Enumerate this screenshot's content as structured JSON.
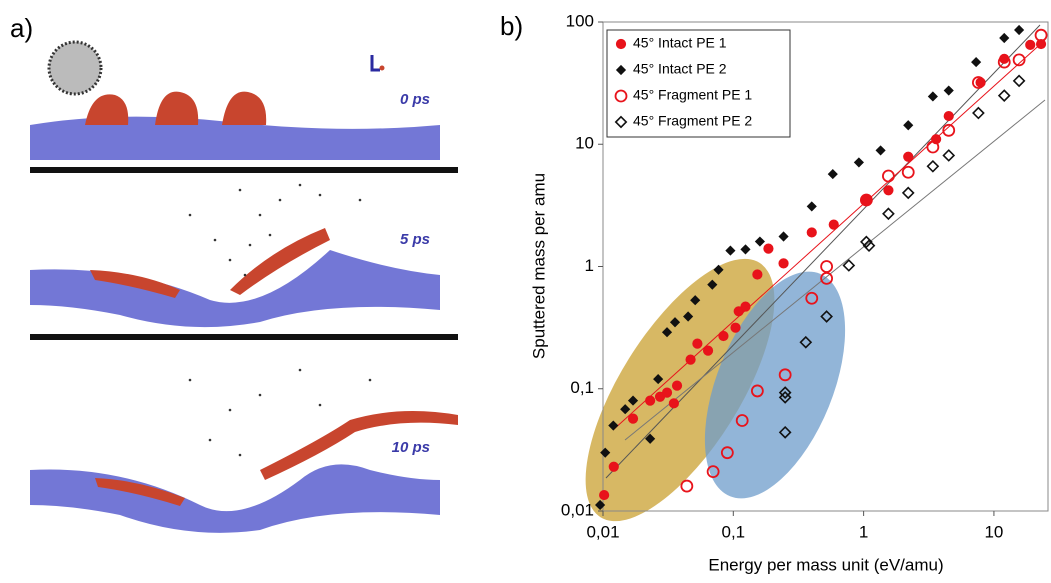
{
  "panel_a": {
    "label": "a)",
    "frames": [
      "0 ps",
      "5 ps",
      "10 ps"
    ]
  },
  "chart_data": {
    "type": "scatter",
    "panel_label": "b)",
    "x_label": "Energy per mass unit (eV/amu)",
    "y_label": "Sputtered mass per amu",
    "x_log": true,
    "y_log": true,
    "grid": false,
    "legend": "top-left",
    "xlim": [
      0.01,
      26
    ],
    "ylim": [
      0.01,
      100
    ],
    "xticks": [
      {
        "value": 0.01,
        "label": "0,01"
      },
      {
        "value": 0.1,
        "label": "0,1"
      },
      1,
      10
    ],
    "yticks": [
      {
        "value": 0.01,
        "label": "0,01"
      },
      {
        "value": 0.1,
        "label": "0,1"
      },
      1,
      10,
      100
    ],
    "series": [
      {
        "name": "45° Intact PE 1",
        "color": "#e8131b",
        "marker": "circle",
        "filled": true,
        "x": [
          0.0102,
          0.0121,
          0.017,
          0.023,
          0.0274,
          0.031,
          0.035,
          0.037,
          0.047,
          0.053,
          0.064,
          0.084,
          0.104,
          0.11,
          0.124,
          0.153,
          0.186,
          0.243,
          0.4,
          0.59,
          1.05,
          1.55,
          2.2,
          3.6,
          4.5,
          7.9,
          12,
          19,
          23
        ],
        "values": [
          0.0135,
          0.023,
          0.057,
          0.08,
          0.086,
          0.093,
          0.076,
          0.106,
          0.173,
          0.234,
          0.205,
          0.27,
          0.316,
          0.43,
          0.47,
          0.86,
          1.4,
          1.06,
          1.9,
          2.2,
          3.5,
          4.2,
          7.9,
          11,
          17,
          32,
          50,
          65,
          66
        ]
      },
      {
        "name": "45° Intact PE 2",
        "color": "#111111",
        "marker": "diamond",
        "filled": true,
        "x": [
          0.0095,
          0.0104,
          0.012,
          0.0148,
          0.017,
          0.023,
          0.0265,
          0.031,
          0.0357,
          0.045,
          0.051,
          0.069,
          0.077,
          0.095,
          0.124,
          0.16,
          0.243,
          0.4,
          0.58,
          0.92,
          1.35,
          2.2,
          3.4,
          4.5,
          7.3,
          12,
          15.6
        ],
        "values": [
          0.0112,
          0.03,
          0.05,
          0.068,
          0.08,
          0.039,
          0.12,
          0.29,
          0.35,
          0.39,
          0.53,
          0.71,
          0.94,
          1.35,
          1.38,
          1.6,
          1.76,
          3.1,
          5.7,
          7.1,
          8.9,
          14.3,
          24.6,
          27.5,
          47,
          74,
          86
        ]
      },
      {
        "name": "45° Fragment PE 1",
        "color": "#e8131b",
        "marker": "circle",
        "filled": false,
        "x": [
          0.044,
          0.07,
          0.09,
          0.117,
          0.153,
          0.25,
          0.4,
          0.52,
          0.52,
          1.05,
          1.55,
          2.2,
          3.4,
          4.5,
          7.6,
          12,
          15.6,
          23
        ],
        "values": [
          0.016,
          0.021,
          0.03,
          0.055,
          0.096,
          0.13,
          0.55,
          0.8,
          1.0,
          3.5,
          5.5,
          5.9,
          9.5,
          13,
          32,
          47,
          49,
          78
        ]
      },
      {
        "name": "45° Fragment PE 2",
        "color": "#111111",
        "marker": "diamond",
        "filled": false,
        "x": [
          0.25,
          0.25,
          0.25,
          0.36,
          0.52,
          0.77,
          1.05,
          1.1,
          1.55,
          2.2,
          3.4,
          4.5,
          7.6,
          12,
          15.6
        ],
        "values": [
          0.044,
          0.085,
          0.093,
          0.24,
          0.39,
          1.02,
          1.59,
          1.48,
          2.7,
          4.0,
          6.6,
          8.1,
          18,
          25,
          33
        ]
      }
    ]
  }
}
